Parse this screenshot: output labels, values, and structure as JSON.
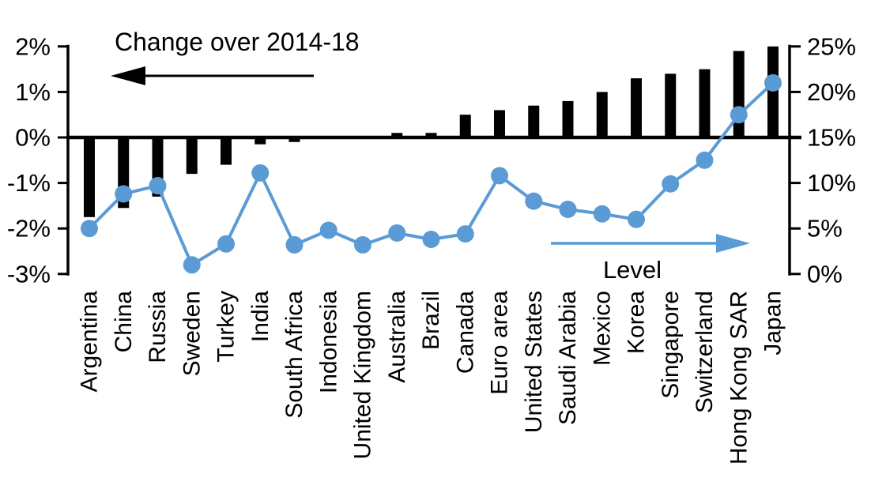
{
  "chart_data": {
    "type": "bar",
    "subtype": "combo-bar-line-dual-axis",
    "title": "",
    "categories": [
      "Argentina",
      "China",
      "Russia",
      "Sweden",
      "Turkey",
      "India",
      "South Africa",
      "Indonesia",
      "United Kingdom",
      "Australia",
      "Brazil",
      "Canada",
      "Euro area",
      "United States",
      "Saudi Arabia",
      "Mexico",
      "Korea",
      "Singapore",
      "Switzerland",
      "Hong Kong SAR",
      "Japan"
    ],
    "series": [
      {
        "name": "Change over 2014-18",
        "type": "bar",
        "axis": "left",
        "values": [
          -1.75,
          -1.55,
          -1.3,
          -0.8,
          -0.6,
          -0.15,
          -0.1,
          0.0,
          0.0,
          0.1,
          0.1,
          0.5,
          0.6,
          0.7,
          0.8,
          1.0,
          1.3,
          1.4,
          1.5,
          1.9,
          2.0
        ]
      },
      {
        "name": "Level",
        "type": "line",
        "axis": "right",
        "values": [
          5.0,
          8.8,
          9.7,
          1.0,
          3.3,
          11.1,
          3.2,
          4.8,
          3.2,
          4.5,
          3.8,
          4.4,
          10.8,
          8.0,
          7.1,
          6.6,
          6.0,
          9.9,
          12.5,
          17.5,
          21.0
        ]
      }
    ],
    "left_axis": {
      "min": -3,
      "max": 2,
      "ticks": [
        2,
        1,
        0,
        -1,
        -2,
        -3
      ],
      "tick_labels": [
        "2%",
        "1%",
        "0%",
        "-1%",
        "-2%",
        "-3%"
      ]
    },
    "right_axis": {
      "min": 0,
      "max": 25,
      "ticks": [
        25,
        20,
        15,
        10,
        5,
        0
      ],
      "tick_labels": [
        "25%",
        "20%",
        "15%",
        "10%",
        "5%",
        "0%"
      ]
    },
    "annotations": {
      "change_label": "Change over 2014-18",
      "change_arrow_direction": "left",
      "level_label": "Level",
      "level_arrow_direction": "right"
    },
    "colors": {
      "bar": "#000000",
      "line": "#5B9BD5",
      "axis": "#000000"
    },
    "layout": {
      "grid": "off",
      "legend": "none",
      "x_labels_rotation_deg": 90
    }
  }
}
